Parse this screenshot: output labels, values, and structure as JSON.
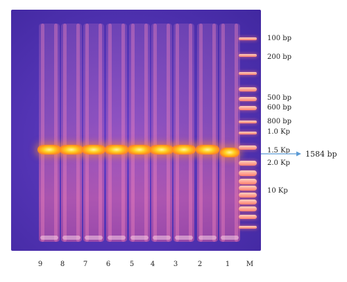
{
  "lanes": [
    "9",
    "8",
    "7",
    "6",
    "5",
    "4",
    "3",
    "2",
    "1"
  ],
  "marker_label": "M",
  "size_markers": [
    "100 bp",
    "200 bp",
    "500 bp",
    "600 bp",
    "800 bp",
    "1.0 Kp",
    "1.5 Kp",
    "2.0 Kp",
    "10 Kp"
  ],
  "target_band": "1584 bp",
  "colors": {
    "gel": "#5535b6",
    "band": "#ffb020",
    "ladder": "#ff8a70",
    "arrow": "#5b9bd5"
  }
}
